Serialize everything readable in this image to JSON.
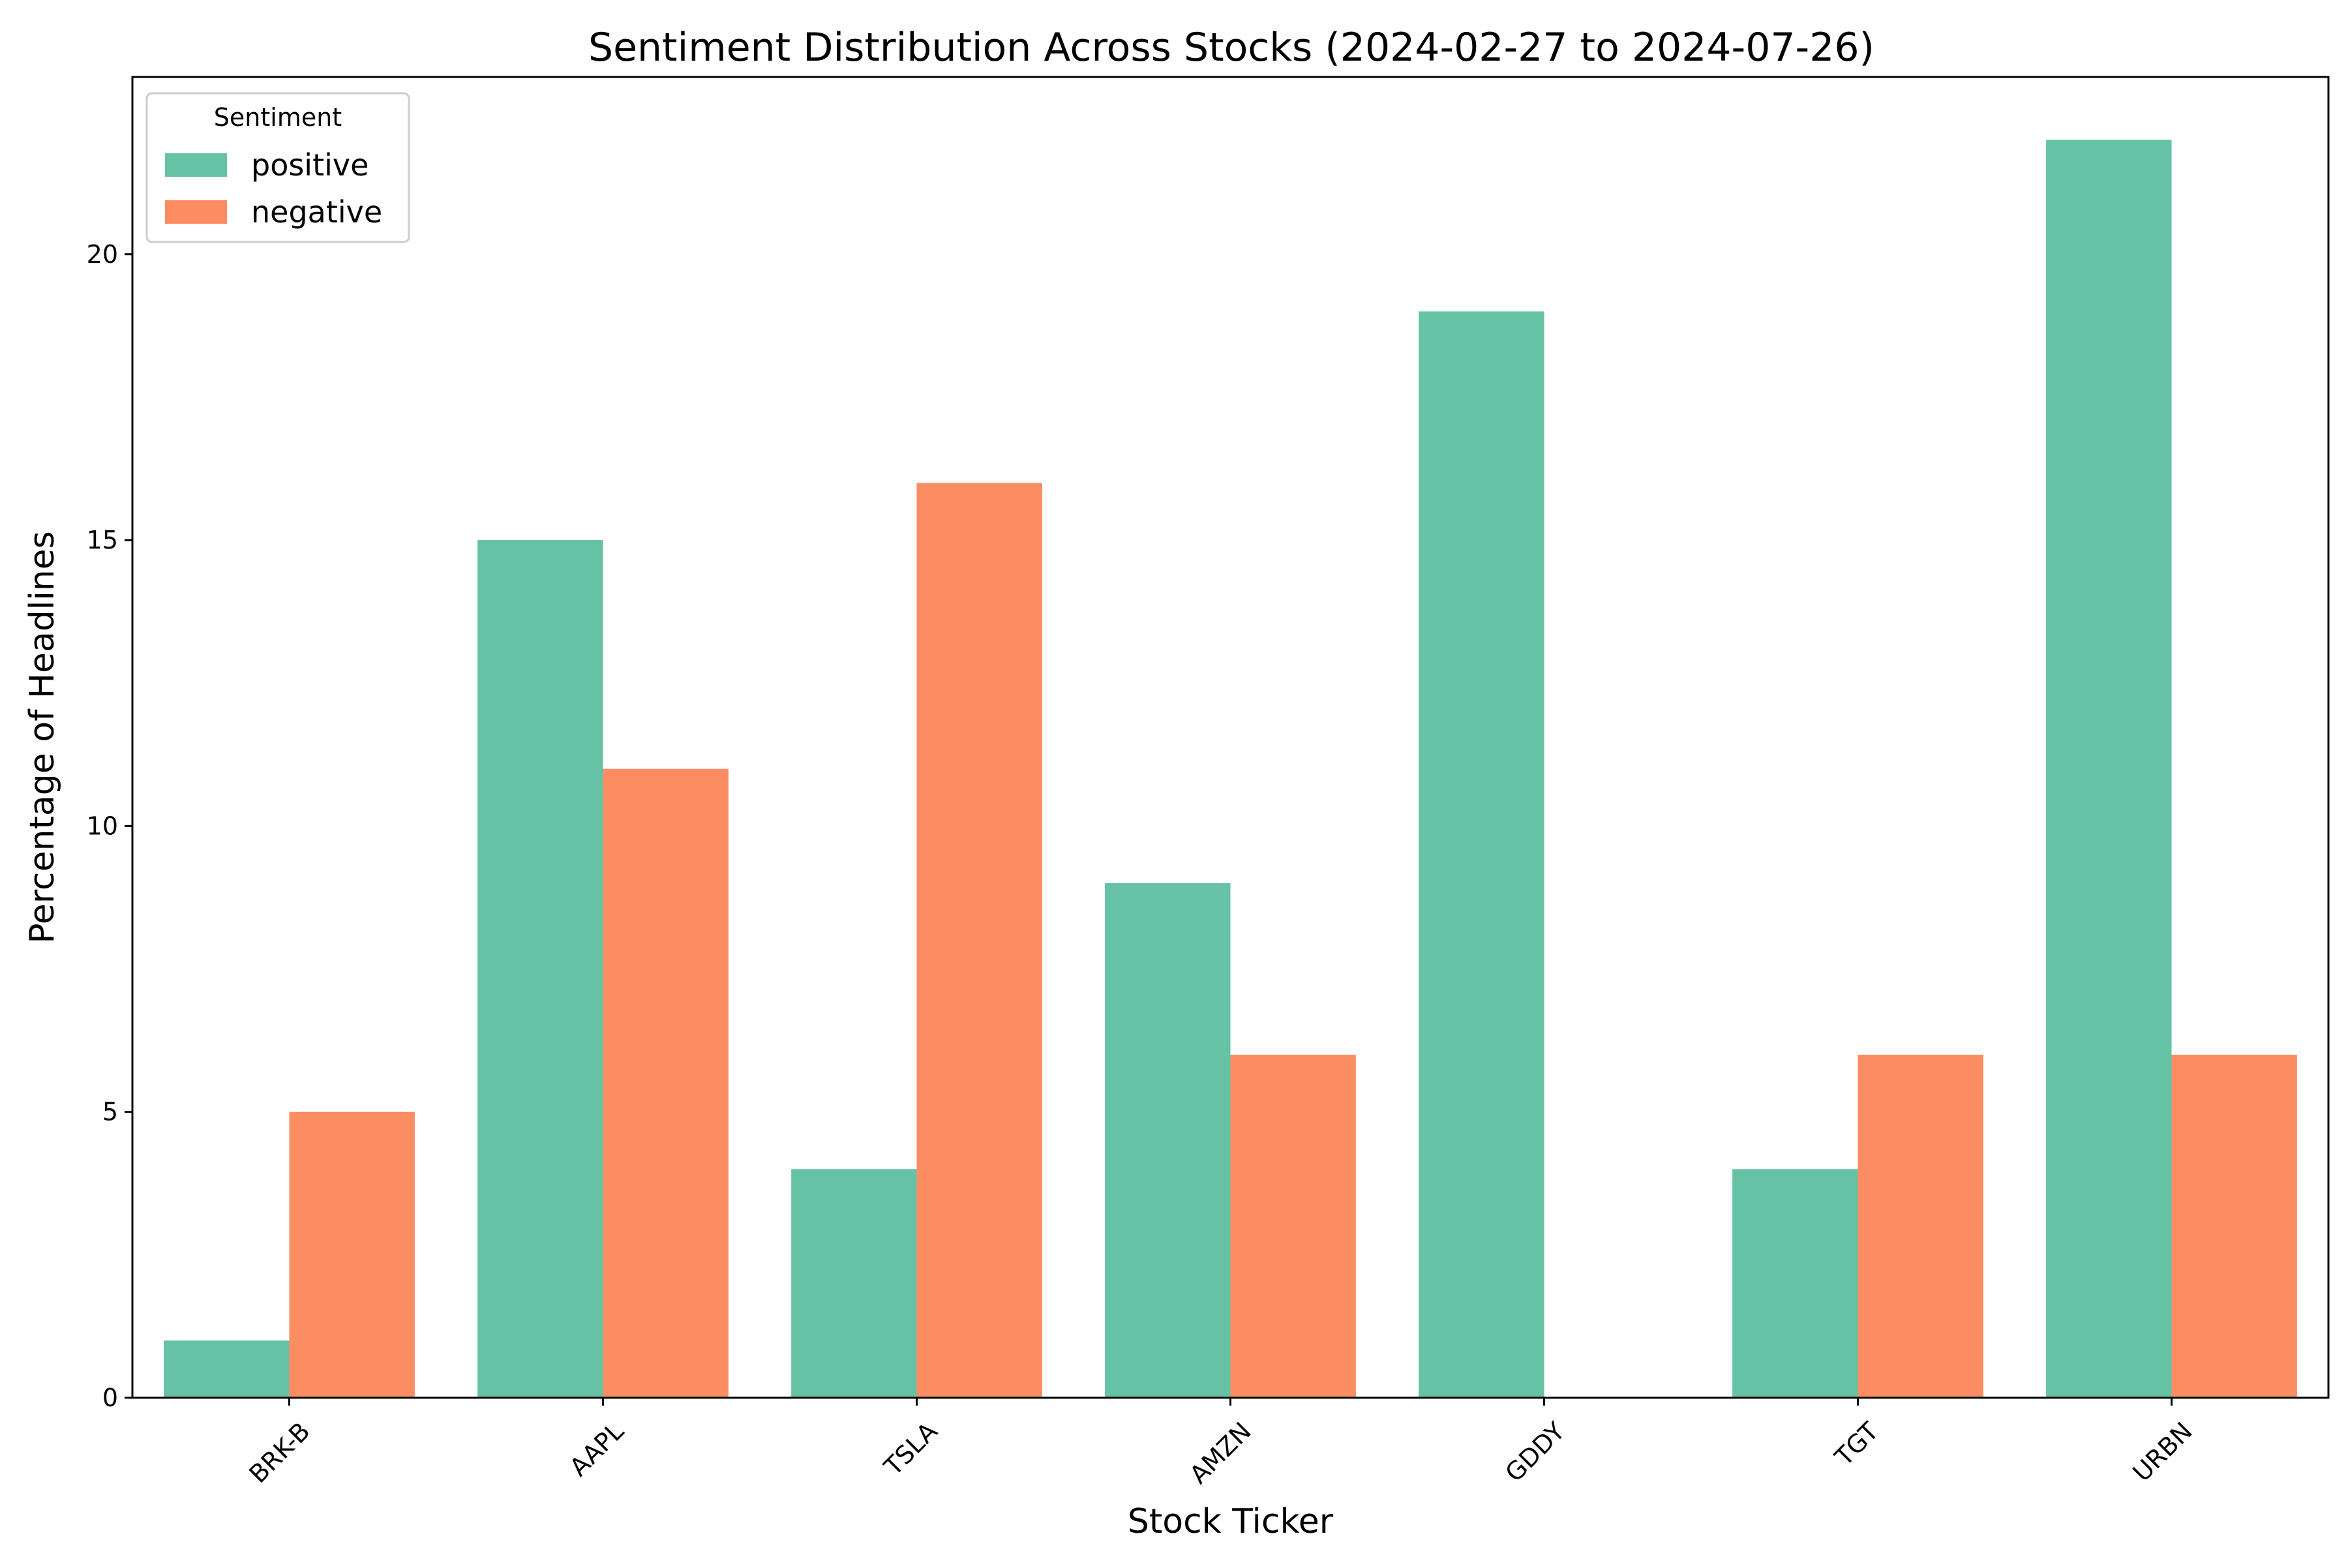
{
  "chart_data": {
    "type": "bar",
    "title": "Sentiment Distribution Across Stocks (2024-02-27 to 2024-07-26)",
    "xlabel": "Stock Ticker",
    "ylabel": "Percentage of Headlines",
    "categories": [
      "BRK-B",
      "AAPL",
      "TSLA",
      "AMZN",
      "GDDY",
      "TGT",
      "URBN"
    ],
    "series": [
      {
        "name": "positive",
        "color": "#66c2a5",
        "values": [
          1,
          15,
          4,
          9,
          19,
          4,
          22
        ]
      },
      {
        "name": "negative",
        "color": "#fc8d62",
        "values": [
          5,
          11,
          16,
          6,
          0,
          6,
          6
        ]
      }
    ],
    "ylim": [
      0,
      23.1
    ],
    "yticks": [
      0,
      5,
      10,
      15,
      20
    ],
    "grid": false,
    "legend": {
      "title": "Sentiment",
      "position": "top-left"
    }
  }
}
